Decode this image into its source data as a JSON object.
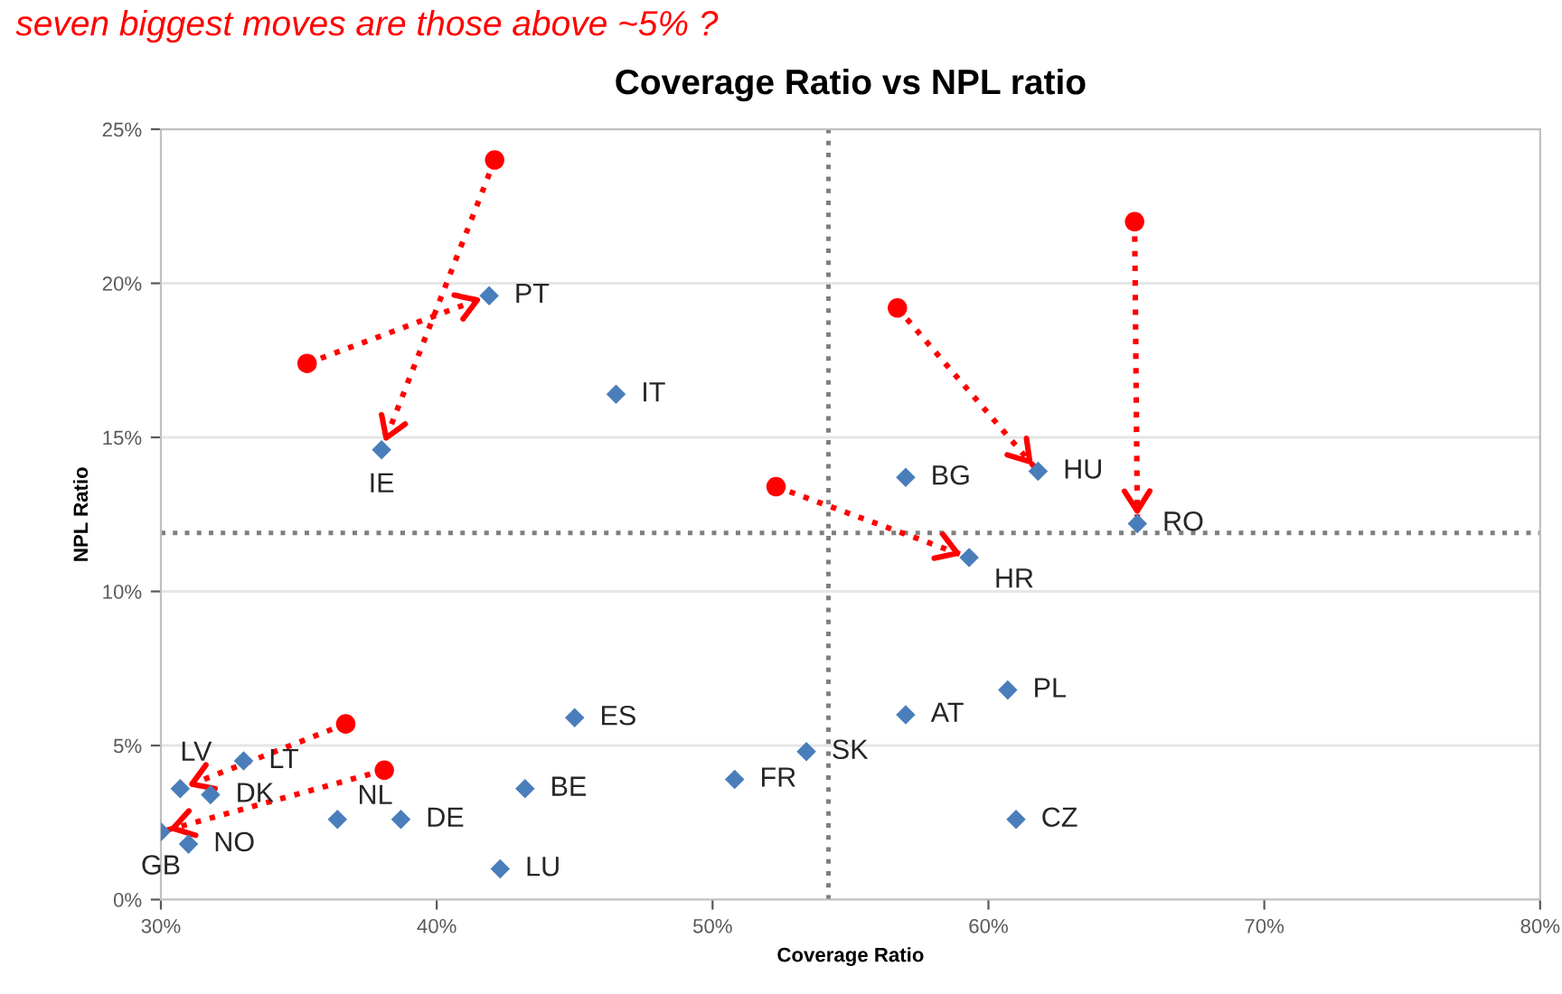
{
  "chart_data": {
    "type": "scatter",
    "title": "Coverage Ratio vs NPL ratio",
    "xlabel": "Coverage Ratio",
    "ylabel": "NPL Ratio",
    "xlim": [
      30,
      80
    ],
    "ylim": [
      0,
      25
    ],
    "xticks": [
      {
        "value": 30,
        "label": "30%"
      },
      {
        "value": 40,
        "label": "40%"
      },
      {
        "value": 50,
        "label": "50%"
      },
      {
        "value": 60,
        "label": "60%"
      },
      {
        "value": 70,
        "label": "70%"
      },
      {
        "value": 80,
        "label": "80%"
      }
    ],
    "yticks": [
      {
        "value": 0,
        "label": "0%"
      },
      {
        "value": 5,
        "label": "5%"
      },
      {
        "value": 10,
        "label": "10%"
      },
      {
        "value": 15,
        "label": "15%"
      },
      {
        "value": 20,
        "label": "20%"
      },
      {
        "value": 25,
        "label": "25%"
      }
    ],
    "grid": "y",
    "legend": false,
    "series": [
      {
        "color": "#4a7ebb",
        "marker": "diamond",
        "x": [
          41.9,
          38.0,
          46.5,
          57.0,
          61.8,
          65.4,
          59.3,
          60.7,
          57.0,
          53.4,
          50.8,
          61.0,
          45.0,
          43.2,
          38.7,
          42.3,
          36.4,
          33.0,
          31.8,
          30.7,
          31.0,
          30.0
        ],
        "values": [
          19.6,
          14.6,
          16.4,
          13.7,
          13.9,
          12.2,
          11.1,
          6.8,
          6.0,
          4.8,
          3.9,
          2.6,
          5.9,
          3.6,
          2.6,
          1.0,
          2.6,
          4.5,
          3.4,
          3.6,
          1.8,
          2.2
        ]
      },
      {
        "type": "scatter",
        "color": "#ff0000",
        "marker": "circle",
        "x": [
          35.3,
          42.1,
          56.7,
          65.3,
          52.3,
          36.7,
          38.1
        ],
        "values": [
          17.4,
          24.0,
          19.2,
          22.0,
          13.4,
          5.7,
          4.2
        ]
      },
      {
        "type": "line",
        "color": "#ff0000",
        "line_style": "dotted",
        "marker": "none",
        "x": [
          35.3,
          41.9
        ],
        "values": [
          17.4,
          19.6
        ]
      },
      {
        "type": "line",
        "color": "#ff0000",
        "line_style": "dotted",
        "marker": "none",
        "x": [
          42.1,
          38.0
        ],
        "values": [
          24.0,
          14.6
        ]
      },
      {
        "type": "line",
        "color": "#ff0000",
        "line_style": "dotted",
        "marker": "none",
        "x": [
          56.7,
          61.8
        ],
        "values": [
          19.2,
          13.9
        ]
      },
      {
        "type": "line",
        "color": "#ff0000",
        "line_style": "dotted",
        "marker": "none",
        "x": [
          65.3,
          65.4
        ],
        "values": [
          22.0,
          12.2
        ]
      },
      {
        "type": "line",
        "color": "#ff0000",
        "line_style": "dotted",
        "marker": "none",
        "x": [
          52.3,
          59.3
        ],
        "values": [
          13.4,
          11.1
        ]
      },
      {
        "type": "line",
        "color": "#ff0000",
        "line_style": "dotted",
        "marker": "none",
        "x": [
          36.7,
          30.7
        ],
        "values": [
          5.7,
          3.6
        ]
      },
      {
        "type": "line",
        "color": "#ff0000",
        "line_style": "dotted",
        "marker": "none",
        "x": [
          38.1,
          30.0
        ],
        "values": [
          4.2,
          2.2
        ]
      }
    ],
    "ref_lines": [
      {
        "axis": "x",
        "value": 54.2,
        "color": "#7f7f7f",
        "line_style": "dotted"
      },
      {
        "axis": "y",
        "value": 11.9,
        "color": "#7f7f7f",
        "line_style": "dotted"
      }
    ],
    "annotations": [
      "seven biggest moves are those above ~5% ?",
      {
        "text": "PT",
        "x": 41.9,
        "y": 19.6
      },
      {
        "text": "IE",
        "x": 38.0,
        "y": 14.6
      },
      {
        "text": "IT",
        "x": 46.5,
        "y": 16.4
      },
      {
        "text": "BG",
        "x": 57.0,
        "y": 13.7
      },
      {
        "text": "HU",
        "x": 61.8,
        "y": 13.9
      },
      {
        "text": "RO",
        "x": 65.4,
        "y": 12.2
      },
      {
        "text": "HR",
        "x": 59.3,
        "y": 11.1
      },
      {
        "text": "PL",
        "x": 60.7,
        "y": 6.8
      },
      {
        "text": "AT",
        "x": 57.0,
        "y": 6.0
      },
      {
        "text": "SK",
        "x": 53.4,
        "y": 4.8
      },
      {
        "text": "FR",
        "x": 50.8,
        "y": 3.9
      },
      {
        "text": "CZ",
        "x": 61.0,
        "y": 2.6
      },
      {
        "text": "ES",
        "x": 45.0,
        "y": 5.9
      },
      {
        "text": "BE",
        "x": 43.2,
        "y": 3.6
      },
      {
        "text": "DE",
        "x": 38.7,
        "y": 2.6
      },
      {
        "text": "LU",
        "x": 42.3,
        "y": 1.0
      },
      {
        "text": "NL",
        "x": 36.4,
        "y": 2.6
      },
      {
        "text": "LT",
        "x": 33.0,
        "y": 4.5
      },
      {
        "text": "DK",
        "x": 31.8,
        "y": 3.4
      },
      {
        "text": "LV",
        "x": 30.7,
        "y": 3.6
      },
      {
        "text": "NO",
        "x": 31.0,
        "y": 1.8
      },
      {
        "text": "GB",
        "x": 30.0,
        "y": 2.2
      }
    ]
  }
}
